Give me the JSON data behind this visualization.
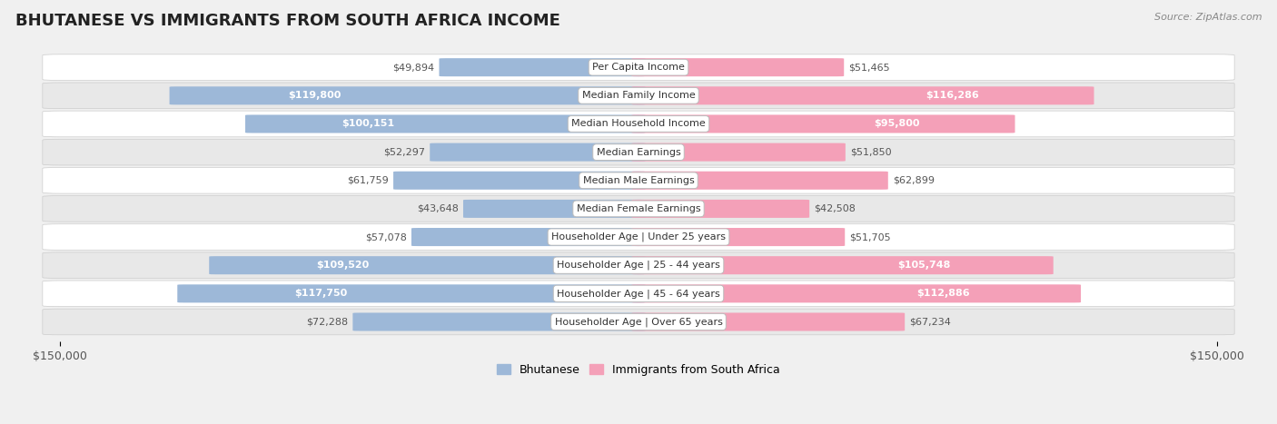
{
  "title": "BHUTANESE VS IMMIGRANTS FROM SOUTH AFRICA INCOME",
  "source": "Source: ZipAtlas.com",
  "categories": [
    "Per Capita Income",
    "Median Family Income",
    "Median Household Income",
    "Median Earnings",
    "Median Male Earnings",
    "Median Female Earnings",
    "Householder Age | Under 25 years",
    "Householder Age | 25 - 44 years",
    "Householder Age | 45 - 64 years",
    "Householder Age | Over 65 years"
  ],
  "bhutanese_values": [
    49894,
    119800,
    100151,
    52297,
    61759,
    43648,
    57078,
    109520,
    117750,
    72288
  ],
  "southafrica_values": [
    51465,
    116286,
    95800,
    51850,
    62899,
    42508,
    51705,
    105748,
    112886,
    67234
  ],
  "bhutanese_labels": [
    "$49,894",
    "$119,800",
    "$100,151",
    "$52,297",
    "$61,759",
    "$43,648",
    "$57,078",
    "$109,520",
    "$117,750",
    "$72,288"
  ],
  "southafrica_labels": [
    "$51,465",
    "$116,286",
    "$95,800",
    "$51,850",
    "$62,899",
    "$42,508",
    "$51,705",
    "$105,748",
    "$112,886",
    "$67,234"
  ],
  "blue_color": "#9db8d8",
  "pink_color": "#f4a0b8",
  "blue_inside_label": "#ffffff",
  "pink_inside_label": "#ffffff",
  "outside_label_color": "#555555",
  "max_value": 150000,
  "bg_color": "#f0f0f0",
  "row_colors": [
    "#ffffff",
    "#e8e8e8"
  ],
  "title_fontsize": 13,
  "source_fontsize": 8,
  "bar_label_fontsize": 8,
  "cat_label_fontsize": 8,
  "axis_fontsize": 9,
  "inside_threshold": 0.55
}
